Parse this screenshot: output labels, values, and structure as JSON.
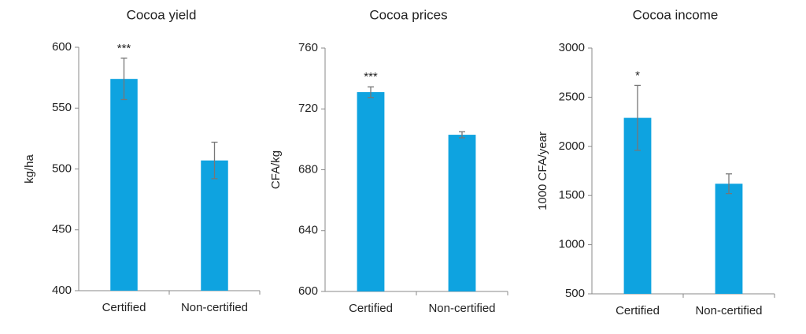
{
  "chart_data": [
    {
      "type": "bar",
      "title": "Cocoa yield",
      "y_label": "kg/ha",
      "categories": [
        "Certified",
        "Non-certified"
      ],
      "values": [
        574,
        507
      ],
      "errors": [
        17,
        15
      ],
      "color": "#0ea3e0",
      "annotations": [
        {
          "category": "Certified",
          "text": "***"
        }
      ],
      "ylim": [
        400,
        600
      ],
      "yticks": [
        400,
        450,
        500,
        550,
        600
      ]
    },
    {
      "type": "bar",
      "title": "Cocoa prices",
      "y_label": "CFA/kg",
      "categories": [
        "Certified",
        "Non-certified"
      ],
      "values": [
        731,
        703
      ],
      "errors": [
        3.5,
        2
      ],
      "color": "#0ea3e0",
      "annotations": [
        {
          "category": "Certified",
          "text": "***"
        }
      ],
      "ylim": [
        600,
        760
      ],
      "yticks": [
        600,
        640,
        680,
        720,
        760
      ]
    },
    {
      "type": "bar",
      "title": "Cocoa income",
      "y_label": "1000 CFA/year",
      "categories": [
        "Certified",
        "Non-certified"
      ],
      "values": [
        2290,
        1620
      ],
      "errors": [
        330,
        100
      ],
      "color": "#0ea3e0",
      "annotations": [
        {
          "category": "Certified",
          "text": "*"
        }
      ],
      "ylim": [
        500,
        3000
      ],
      "yticks": [
        500,
        1000,
        1500,
        2000,
        2500,
        3000
      ]
    }
  ]
}
